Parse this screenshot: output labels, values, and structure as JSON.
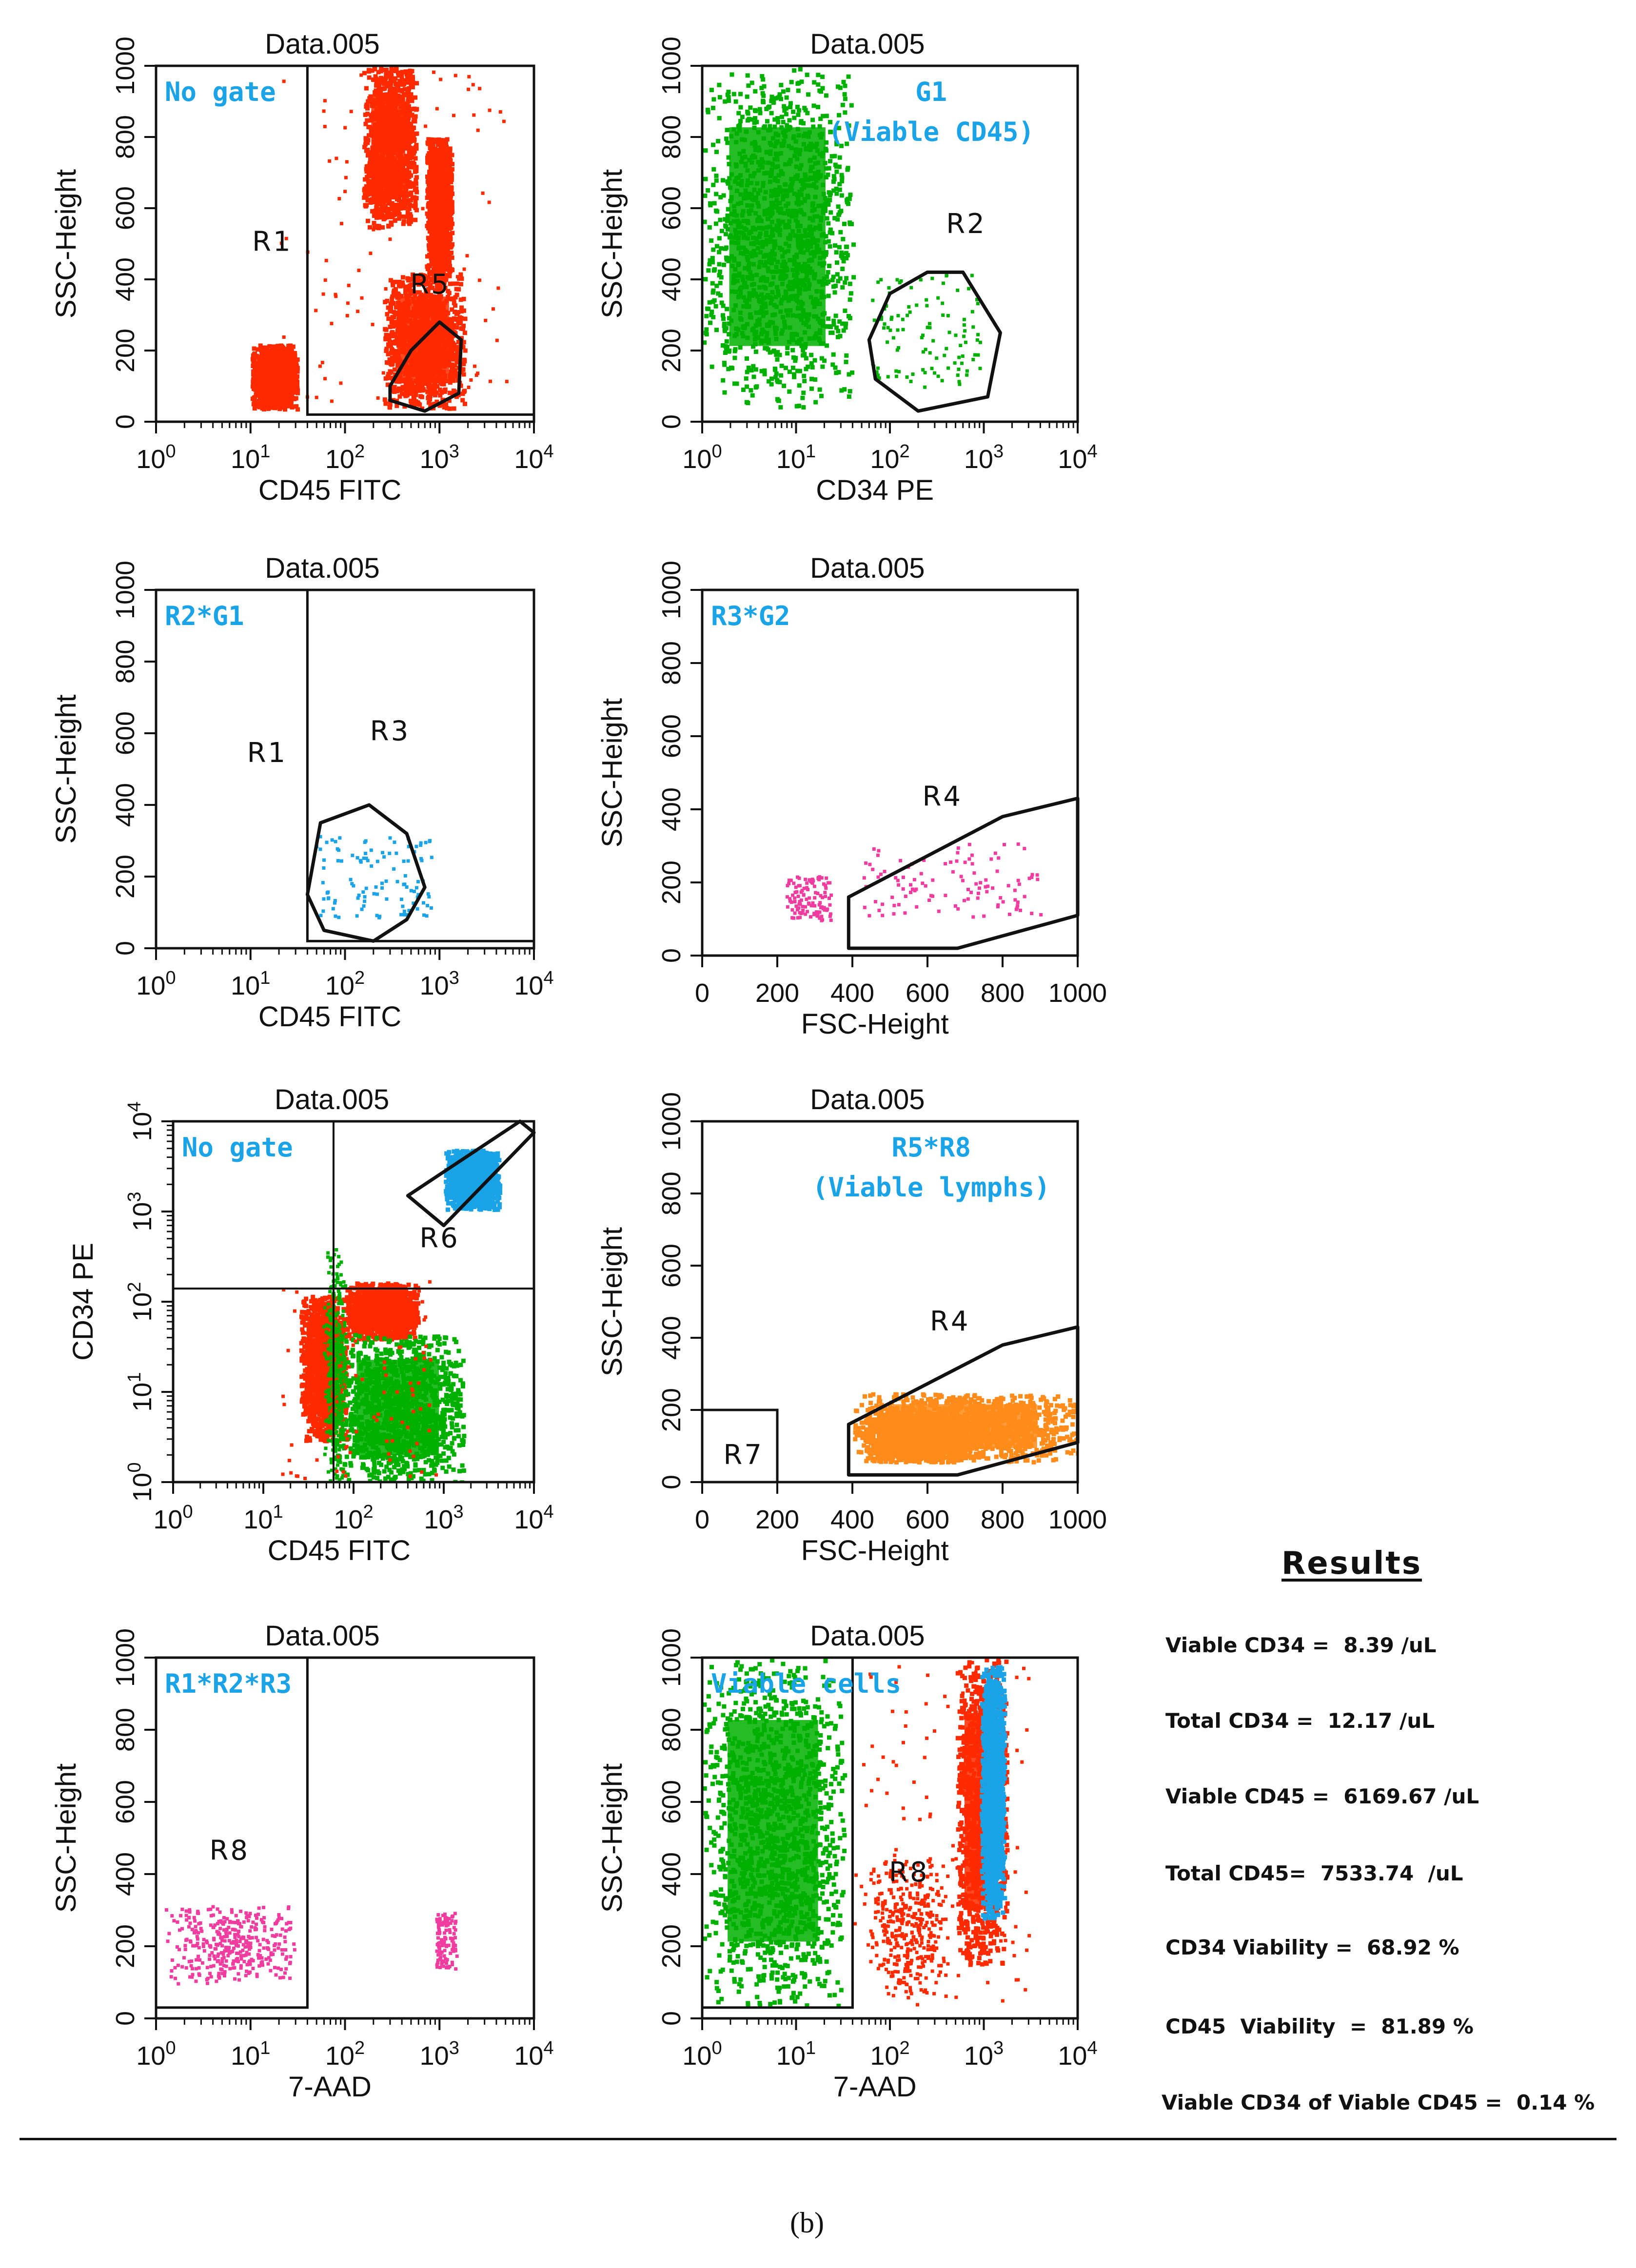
{
  "chart_data": [
    {
      "type": "scatter",
      "title": "Data.005",
      "gate_label": "No  gate",
      "xlabel": "CD45 FITC",
      "ylabel": "SSC-Height",
      "xscale": "log",
      "xlim": [
        1,
        10000
      ],
      "yscale": "linear",
      "ylim": [
        0,
        1000
      ],
      "xticks": [
        "10^0",
        "10^1",
        "10^2",
        "10^3",
        "10^4"
      ],
      "yticks": [
        "0",
        "200",
        "400",
        "600",
        "800",
        "1000"
      ],
      "colors": {
        "cells": "#ff2a00"
      },
      "regions": [
        {
          "label": "R1",
          "shape": "rectangle",
          "label_at": [
            17,
            480
          ],
          "x": [
            40,
            10000
          ],
          "y": [
            20,
            1000
          ]
        },
        {
          "label": "R5",
          "shape": "polygon",
          "label_at": [
            800,
            360
          ],
          "points": [
            [
              300,
              60
            ],
            [
              700,
              30
            ],
            [
              1600,
              80
            ],
            [
              1700,
              230
            ],
            [
              1000,
              280
            ],
            [
              500,
              200
            ],
            [
              300,
              100
            ]
          ]
        }
      ],
      "populations": [
        {
          "name": "granulocytes",
          "color": "#ff2a00",
          "x": [
            150,
            550
          ],
          "y": [
            550,
            1000
          ],
          "density": "high"
        },
        {
          "name": "granulocyte-tail",
          "color": "#ff2a00",
          "x": [
            700,
            1300
          ],
          "y": [
            400,
            800
          ],
          "density": "high"
        },
        {
          "name": "lymphs",
          "color": "#ff2a00",
          "x": [
            250,
            1800
          ],
          "y": [
            40,
            420
          ],
          "density": "high"
        },
        {
          "name": "debris",
          "color": "#ff2a00",
          "x": [
            10,
            30
          ],
          "y": [
            40,
            220
          ],
          "density": "high"
        },
        {
          "name": "scatter",
          "color": "#ff2a00",
          "x": [
            20,
            5000
          ],
          "y": [
            40,
            1000
          ],
          "density": "low"
        }
      ]
    },
    {
      "type": "scatter",
      "title": "Data.005",
      "gate_label": "G1\n(Viable  CD45)",
      "xlabel": "CD34 PE",
      "ylabel": "SSC-Height",
      "xscale": "log",
      "xlim": [
        1,
        10000
      ],
      "yscale": "linear",
      "ylim": [
        0,
        1000
      ],
      "xticks": [
        "10^0",
        "10^1",
        "10^2",
        "10^3",
        "10^4"
      ],
      "yticks": [
        "0",
        "200",
        "400",
        "600",
        "800",
        "1000"
      ],
      "colors": {
        "cells": "#00b000"
      },
      "regions": [
        {
          "label": "R2",
          "shape": "polygon",
          "label_at": [
            650,
            530
          ],
          "points": [
            [
              60,
              230
            ],
            [
              100,
              360
            ],
            [
              250,
              420
            ],
            [
              600,
              420
            ],
            [
              1500,
              250
            ],
            [
              1100,
              70
            ],
            [
              200,
              30
            ],
            [
              70,
              120
            ]
          ]
        }
      ],
      "populations": [
        {
          "name": "cd45-main",
          "color": "#00b000",
          "x": [
            1,
            40
          ],
          "y": [
            40,
            1000
          ],
          "density": "high"
        },
        {
          "name": "cd34-cells",
          "color": "#00b000",
          "x": [
            60,
            900
          ],
          "y": [
            100,
            420
          ],
          "density": "low"
        }
      ]
    },
    {
      "type": "scatter",
      "title": "Data.005",
      "gate_label": "R2*G1",
      "xlabel": "CD45 FITC",
      "ylabel": "SSC-Height",
      "xscale": "log",
      "xlim": [
        1,
        10000
      ],
      "yscale": "linear",
      "ylim": [
        0,
        1000
      ],
      "xticks": [
        "10^0",
        "10^1",
        "10^2",
        "10^3",
        "10^4"
      ],
      "yticks": [
        "0",
        "200",
        "400",
        "600",
        "800",
        "1000"
      ],
      "colors": {
        "cells": "#1aa3e6"
      },
      "regions": [
        {
          "label": "R1",
          "shape": "rectangle",
          "label_at": [
            15,
            520
          ],
          "x": [
            40,
            10000
          ],
          "y": [
            20,
            1000
          ]
        },
        {
          "label": "R3",
          "shape": "polygon",
          "label_at": [
            300,
            580
          ],
          "points": [
            [
              40,
              150
            ],
            [
              55,
              350
            ],
            [
              180,
              400
            ],
            [
              450,
              320
            ],
            [
              700,
              170
            ],
            [
              450,
              80
            ],
            [
              200,
              20
            ],
            [
              60,
              50
            ]
          ]
        }
      ],
      "populations": [
        {
          "name": "cd34-events",
          "color": "#1aa3e6",
          "x": [
            45,
            800
          ],
          "y": [
            90,
            320
          ],
          "density": "low"
        }
      ]
    },
    {
      "type": "scatter",
      "title": "Data.005",
      "gate_label": "R3*G2",
      "xlabel": "FSC-Height",
      "ylabel": "SSC-Height",
      "xscale": "linear",
      "xlim": [
        0,
        1000
      ],
      "yscale": "linear",
      "ylim": [
        0,
        1000
      ],
      "xticks": [
        "0",
        "200",
        "400",
        "600",
        "800",
        "1000"
      ],
      "yticks": [
        "0",
        "200",
        "400",
        "600",
        "800",
        "1000"
      ],
      "colors": {
        "cells": "#f03c9e"
      },
      "regions": [
        {
          "label": "R4",
          "shape": "polygon",
          "label_at": [
            640,
            410
          ],
          "points": [
            [
              390,
              20
            ],
            [
              390,
              160
            ],
            [
              800,
              380
            ],
            [
              1000,
              430
            ],
            [
              1000,
              110
            ],
            [
              680,
              20
            ]
          ]
        }
      ],
      "populations": [
        {
          "name": "cd34-fsc",
          "color": "#f03c9e",
          "x": [
            420,
            900
          ],
          "y": [
            110,
            310
          ],
          "density": "low"
        },
        {
          "name": "outliers",
          "color": "#f03c9e",
          "x": [
            220,
            340
          ],
          "y": [
            100,
            220
          ],
          "density": "low"
        }
      ]
    },
    {
      "type": "scatter",
      "title": "Data.005",
      "gate_label": "No  gate",
      "xlabel": "CD45 FITC",
      "ylabel": "CD34 PE",
      "xscale": "log",
      "xlim": [
        1,
        10000
      ],
      "yscale": "log",
      "ylim": [
        1,
        10000
      ],
      "xticks": [
        "10^0",
        "10^1",
        "10^2",
        "10^3",
        "10^4"
      ],
      "yticks": [
        "10^0",
        "10^1",
        "10^2",
        "10^3",
        "10^4"
      ],
      "colors": {
        "cd45": "#ff2a00",
        "gated": "#00b000",
        "beads": "#1aa3e6"
      },
      "regions": [
        {
          "label": "R6",
          "shape": "polygon",
          "label_at": [
            900,
            400
          ],
          "points": [
            [
              400,
              1500
            ],
            [
              1000,
              700
            ],
            [
              10000,
              7500
            ],
            [
              7000,
              10000
            ]
          ]
        }
      ],
      "quadrant": {
        "x": 60,
        "y": 140
      },
      "populations": [
        {
          "name": "red-lymphs",
          "color": "#ff2a00",
          "x": [
            25,
            80
          ],
          "y": [
            3,
            120
          ],
          "density": "high"
        },
        {
          "name": "red-upper",
          "color": "#ff2a00",
          "x": [
            80,
            500
          ],
          "y": [
            40,
            170
          ],
          "density": "high"
        },
        {
          "name": "green-main",
          "color": "#00b000",
          "x": [
            60,
            1600
          ],
          "y": [
            1,
            45
          ],
          "density": "high"
        },
        {
          "name": "green-column",
          "color": "#00b000",
          "x": [
            45,
            80
          ],
          "y": [
            1,
            400
          ],
          "density": "medium"
        },
        {
          "name": "beads",
          "color": "#1aa3e6",
          "x": [
            1000,
            4000
          ],
          "y": [
            1100,
            5000
          ],
          "density": "high"
        },
        {
          "name": "red-scatter",
          "color": "#ff2a00",
          "x": [
            15,
            800
          ],
          "y": [
            1,
            180
          ],
          "density": "low"
        }
      ]
    },
    {
      "type": "scatter",
      "title": "Data.005",
      "gate_label": "R5*R8\n(Viable  lymphs)",
      "xlabel": "FSC-Height",
      "ylabel": "SSC-Height",
      "xscale": "linear",
      "xlim": [
        0,
        1000
      ],
      "yscale": "linear",
      "ylim": [
        0,
        1000
      ],
      "xticks": [
        "0",
        "200",
        "400",
        "600",
        "800",
        "1000"
      ],
      "yticks": [
        "0",
        "200",
        "400",
        "600",
        "800",
        "1000"
      ],
      "colors": {
        "cells": "#ff8c1a"
      },
      "regions": [
        {
          "label": "R4",
          "shape": "polygon",
          "label_at": [
            660,
            420
          ],
          "points": [
            [
              390,
              20
            ],
            [
              390,
              160
            ],
            [
              800,
              380
            ],
            [
              1000,
              430
            ],
            [
              1000,
              110
            ],
            [
              680,
              20
            ]
          ]
        },
        {
          "label": "R7",
          "shape": "rectangle",
          "label_at": [
            110,
            50
          ],
          "x": [
            0,
            200
          ],
          "y": [
            0,
            200
          ]
        }
      ],
      "populations": [
        {
          "name": "lymphs",
          "color": "#ff8c1a",
          "x": [
            400,
            1000
          ],
          "y": [
            60,
            250
          ],
          "density": "high"
        },
        {
          "name": "lymph-core",
          "color": "#ff8c1a",
          "x": [
            430,
            700
          ],
          "y": [
            60,
            200
          ],
          "density": "high"
        }
      ]
    },
    {
      "type": "scatter",
      "title": "Data.005",
      "gate_label": "R1*R2*R3",
      "xlabel": "7-AAD",
      "ylabel": "SSC-Height",
      "xscale": "log",
      "xlim": [
        1,
        10000
      ],
      "yscale": "linear",
      "ylim": [
        0,
        1000
      ],
      "xticks": [
        "10^0",
        "10^1",
        "10^2",
        "10^3",
        "10^4"
      ],
      "yticks": [
        "0",
        "200",
        "400",
        "600",
        "800",
        "1000"
      ],
      "colors": {
        "cells": "#f03c9e"
      },
      "regions": [
        {
          "label": "R8",
          "shape": "rectangle",
          "label_at": [
            6,
            440
          ],
          "x": [
            1,
            40
          ],
          "y": [
            30,
            1000
          ]
        }
      ],
      "populations": [
        {
          "name": "viable-cd34",
          "color": "#f03c9e",
          "x": [
            1.2,
            30
          ],
          "y": [
            100,
            320
          ],
          "density": "medium"
        },
        {
          "name": "dead-cd34",
          "color": "#f03c9e",
          "x": [
            900,
            1500
          ],
          "y": [
            140,
            300
          ],
          "density": "low"
        }
      ]
    },
    {
      "type": "scatter",
      "title": "Data.005",
      "gate_label": "Viable  cells",
      "xlabel": "7-AAD",
      "ylabel": "SSC-Height",
      "xscale": "log",
      "xlim": [
        1,
        10000
      ],
      "yscale": "linear",
      "ylim": [
        0,
        1000
      ],
      "xticks": [
        "10^0",
        "10^1",
        "10^2",
        "10^3",
        "10^4"
      ],
      "yticks": [
        "0",
        "200",
        "400",
        "600",
        "800",
        "1000"
      ],
      "colors": {
        "viable": "#00b000",
        "dead": "#ff2a00",
        "beads": "#1aa3e6"
      },
      "regions": [
        {
          "label": "R8",
          "shape": "rectangle",
          "label_at": [
            160,
            380
          ],
          "x": [
            1,
            40
          ],
          "y": [
            30,
            1000
          ]
        }
      ],
      "populations": [
        {
          "name": "viable-cells",
          "color": "#00b000",
          "x": [
            1,
            32
          ],
          "y": [
            40,
            1000
          ],
          "density": "high"
        },
        {
          "name": "dead-scatter",
          "color": "#ff2a00",
          "x": [
            40,
            3000
          ],
          "y": [
            40,
            1000
          ],
          "density": "low"
        },
        {
          "name": "dead-cluster",
          "color": "#ff2a00",
          "x": [
            60,
            400
          ],
          "y": [
            60,
            450
          ],
          "density": "medium"
        },
        {
          "name": "dead-column",
          "color": "#ff2a00",
          "x": [
            500,
            1700
          ],
          "y": [
            150,
            1000
          ],
          "density": "high"
        },
        {
          "name": "beads-column",
          "color": "#1aa3e6",
          "x": [
            900,
            1600
          ],
          "y": [
            280,
            980
          ],
          "density": "high"
        }
      ]
    }
  ],
  "results": {
    "title": "Results",
    "rows": [
      "Viable CD34 =  8.39 /uL",
      "Total CD34 =  12.17 /uL",
      "Viable CD45 =  6169.67 /uL",
      "Total CD45=  7533.74  /uL",
      "CD34 Viability =  68.92 %",
      "CD45  Viability  =  81.89 %",
      "Viable CD34 of Viable CD45 =  0.14 %"
    ]
  },
  "caption": "(b)"
}
